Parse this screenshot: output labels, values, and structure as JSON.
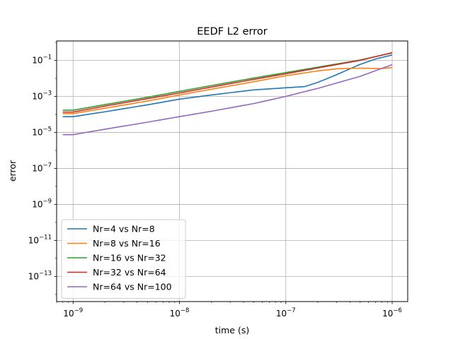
{
  "chart_data": {
    "type": "line",
    "title": "EEDF L2 error",
    "xlabel": "time (s)",
    "ylabel": "error",
    "xscale": "log",
    "yscale": "log",
    "xlim": [
      7e-10,
      1.4e-06
    ],
    "ylim": [
      4e-15,
      1.2
    ],
    "grid": true,
    "legend_position": "lower-left",
    "xticks": [
      {
        "value": 1e-09,
        "label": "10",
        "exp": "−9"
      },
      {
        "value": 1e-08,
        "label": "10",
        "exp": "−8"
      },
      {
        "value": 1e-07,
        "label": "10",
        "exp": "−7"
      },
      {
        "value": 1e-06,
        "label": "10",
        "exp": "−6"
      }
    ],
    "yticks": [
      {
        "value": 0.1,
        "label": "10",
        "exp": "−1"
      },
      {
        "value": 0.001,
        "label": "10",
        "exp": "−3"
      },
      {
        "value": 1e-05,
        "label": "10",
        "exp": "−5"
      },
      {
        "value": 1e-07,
        "label": "10",
        "exp": "−7"
      },
      {
        "value": 1e-09,
        "label": "10",
        "exp": "−9"
      },
      {
        "value": 1e-11,
        "label": "10",
        "exp": "−11"
      },
      {
        "value": 1e-13,
        "label": "10",
        "exp": "−13"
      }
    ],
    "series": [
      {
        "name": "Nr=4 vs Nr=8",
        "color": "#1f77b4",
        "points": [
          [
            8e-10,
            7.5e-05
          ],
          [
            1e-09,
            7.5e-05
          ],
          [
            2e-09,
            0.00014
          ],
          [
            5e-09,
            0.00034
          ],
          [
            1e-08,
            0.0007
          ],
          [
            2e-08,
            0.0012
          ],
          [
            5e-08,
            0.0023
          ],
          [
            1e-07,
            0.003
          ],
          [
            1.5e-07,
            0.0035
          ],
          [
            2e-07,
            0.006
          ],
          [
            3e-07,
            0.016
          ],
          [
            5e-07,
            0.06
          ],
          [
            7e-07,
            0.12
          ],
          [
            1e-06,
            0.2
          ]
        ]
      },
      {
        "name": "Nr=8 vs Nr=16",
        "color": "#ff7f0e",
        "points": [
          [
            8e-10,
            0.00011
          ],
          [
            1e-09,
            0.00011
          ],
          [
            2e-09,
            0.00022
          ],
          [
            5e-09,
            0.00055
          ],
          [
            1e-08,
            0.0012
          ],
          [
            2e-08,
            0.0025
          ],
          [
            5e-08,
            0.0065
          ],
          [
            1e-07,
            0.014
          ],
          [
            2e-07,
            0.026
          ],
          [
            3e-07,
            0.034
          ],
          [
            5e-07,
            0.037
          ],
          [
            8e-07,
            0.035
          ],
          [
            1e-06,
            0.04
          ]
        ]
      },
      {
        "name": "Nr=16 vs Nr=32",
        "color": "#2ca02c",
        "points": [
          [
            8e-10,
            0.00017
          ],
          [
            1e-09,
            0.00017
          ],
          [
            2e-09,
            0.00035
          ],
          [
            5e-09,
            0.0009
          ],
          [
            1e-08,
            0.0019
          ],
          [
            2e-08,
            0.004
          ],
          [
            5e-08,
            0.0105
          ],
          [
            1e-07,
            0.021
          ],
          [
            2e-07,
            0.042
          ],
          [
            5e-07,
            0.105
          ],
          [
            1e-06,
            0.26
          ]
        ]
      },
      {
        "name": "Nr=32 vs Nr=64",
        "color": "#d62728",
        "points": [
          [
            8e-10,
            0.000135
          ],
          [
            1e-09,
            0.000135
          ],
          [
            2e-09,
            0.00029
          ],
          [
            5e-09,
            0.00075
          ],
          [
            1e-08,
            0.00155
          ],
          [
            2e-08,
            0.0033
          ],
          [
            5e-08,
            0.0088
          ],
          [
            1e-07,
            0.018
          ],
          [
            2e-07,
            0.038
          ],
          [
            5e-07,
            0.1
          ],
          [
            1e-06,
            0.27
          ]
        ]
      },
      {
        "name": "Nr=64 vs Nr=100",
        "color": "#9467bd",
        "points": [
          [
            8e-10,
            7.5e-06
          ],
          [
            1e-09,
            7.5e-06
          ],
          [
            2e-09,
            1.5e-05
          ],
          [
            5e-09,
            3.7e-05
          ],
          [
            1e-08,
            7.5e-05
          ],
          [
            2e-08,
            0.00015
          ],
          [
            5e-08,
            0.0004
          ],
          [
            1e-07,
            0.001
          ],
          [
            2e-07,
            0.0028
          ],
          [
            5e-07,
            0.013
          ],
          [
            1e-06,
            0.058
          ]
        ]
      }
    ]
  }
}
